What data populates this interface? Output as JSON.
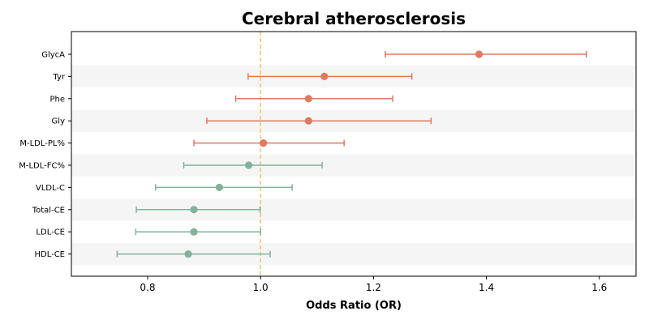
{
  "chart_data": {
    "type": "scatter",
    "subtype": "forest-plot",
    "title": "Cerebral atherosclerosis",
    "xlabel": "Odds Ratio (OR)",
    "ylabel": "",
    "xlim": [
      0.665,
      1.665
    ],
    "xticks": [
      "0.8",
      "1.0",
      "1.2",
      "1.4",
      "1.6"
    ],
    "reference_line": 1.0,
    "reference_color": "#f2c27a",
    "row_shading": "alternating",
    "colors": {
      "positive": "#e07a5f",
      "negative": "#81b29a"
    },
    "rows": [
      {
        "label": "GlycA",
        "or": 1.387,
        "lo": 1.221,
        "hi": 1.577,
        "group": "positive"
      },
      {
        "label": "Tyr",
        "or": 1.113,
        "lo": 0.978,
        "hi": 1.268,
        "group": "positive"
      },
      {
        "label": "Phe",
        "or": 1.085,
        "lo": 0.956,
        "hi": 1.234,
        "group": "positive"
      },
      {
        "label": "Gly",
        "or": 1.085,
        "lo": 0.905,
        "hi": 1.302,
        "group": "positive"
      },
      {
        "label": "M-LDL-PL%",
        "or": 1.005,
        "lo": 0.882,
        "hi": 1.148,
        "group": "positive"
      },
      {
        "label": "M-LDL-FC%",
        "or": 0.979,
        "lo": 0.864,
        "hi": 1.109,
        "group": "negative"
      },
      {
        "label": "VLDL-C",
        "or": 0.927,
        "lo": 0.814,
        "hi": 1.056,
        "group": "negative"
      },
      {
        "label": "Total-CE",
        "or": 0.882,
        "lo": 0.78,
        "hi": 0.999,
        "group": "negative"
      },
      {
        "label": "LDL-CE",
        "or": 0.882,
        "lo": 0.779,
        "hi": 1.0,
        "group": "negative"
      },
      {
        "label": "HDL-CE",
        "or": 0.872,
        "lo": 0.746,
        "hi": 1.017,
        "group": "negative"
      }
    ]
  }
}
